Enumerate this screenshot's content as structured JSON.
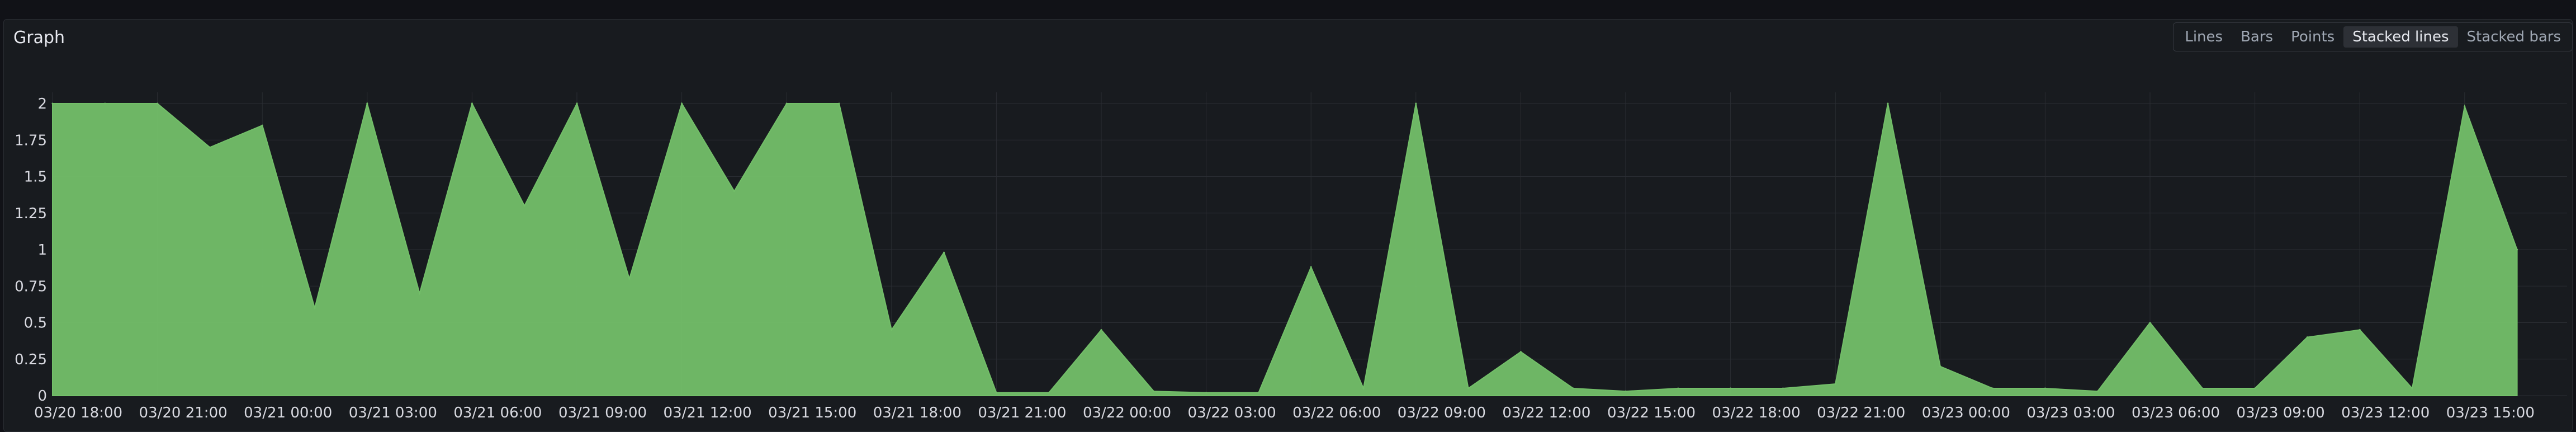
{
  "panel": {
    "title": "Graph"
  },
  "viz_options": [
    {
      "label": "Lines",
      "active": false
    },
    {
      "label": "Bars",
      "active": false
    },
    {
      "label": "Points",
      "active": false
    },
    {
      "label": "Stacked lines",
      "active": true
    },
    {
      "label": "Stacked bars",
      "active": false
    }
  ],
  "colors": {
    "series": "#73bf69",
    "grid": "#2a2d33",
    "background": "#181b1f"
  },
  "chart_data": {
    "type": "area",
    "ylim": [
      0,
      2
    ],
    "y_ticks": [
      "0",
      "0.25",
      "0.5",
      "0.75",
      "1",
      "1.25",
      "1.5",
      "1.75",
      "2"
    ],
    "x_ticks": [
      "03/20 18:00",
      "03/20 21:00",
      "03/21 00:00",
      "03/21 03:00",
      "03/21 06:00",
      "03/21 09:00",
      "03/21 12:00",
      "03/21 15:00",
      "03/21 18:00",
      "03/21 21:00",
      "03/22 00:00",
      "03/22 03:00",
      "03/22 06:00",
      "03/22 09:00",
      "03/22 12:00",
      "03/22 15:00",
      "03/22 18:00",
      "03/22 21:00",
      "03/23 00:00",
      "03/23 03:00",
      "03/23 06:00",
      "03/23 09:00",
      "03/23 12:00",
      "03/23 15:00"
    ],
    "grid": true,
    "legend": "none",
    "series": [
      {
        "x": [
          "03/20 18:00",
          "03/20 19:30",
          "03/20 21:00",
          "03/20 22:30",
          "03/21 00:00",
          "03/21 01:30",
          "03/21 03:00",
          "03/21 04:30",
          "03/21 06:00",
          "03/21 07:30",
          "03/21 09:00",
          "03/21 10:30",
          "03/21 12:00",
          "03/21 13:30",
          "03/21 15:00",
          "03/21 16:30",
          "03/21 18:00",
          "03/21 19:30",
          "03/21 21:00",
          "03/21 22:30",
          "03/22 00:00",
          "03/22 01:30",
          "03/22 03:00",
          "03/22 04:30",
          "03/22 06:00",
          "03/22 07:30",
          "03/22 09:00",
          "03/22 10:30",
          "03/22 12:00",
          "03/22 13:30",
          "03/22 15:00",
          "03/22 16:30",
          "03/22 18:00",
          "03/22 19:30",
          "03/22 21:00",
          "03/22 22:30",
          "03/23 00:00",
          "03/23 01:30",
          "03/23 03:00",
          "03/23 04:30",
          "03/23 06:00",
          "03/23 07:30",
          "03/23 09:00",
          "03/23 10:30",
          "03/23 12:00",
          "03/23 13:30",
          "03/23 15:00",
          "03/23 16:30"
        ],
        "values": [
          2,
          2,
          2,
          1.7,
          1.85,
          0.6,
          2,
          0.7,
          2,
          1.3,
          2,
          0.8,
          2,
          1.4,
          2,
          2,
          0.45,
          0.98,
          0.02,
          0.02,
          0.45,
          0.03,
          0.02,
          0.02,
          0.88,
          0.05,
          2,
          0.05,
          0.3,
          0.05,
          0.03,
          0.05,
          0.05,
          0.05,
          0.08,
          2,
          0.2,
          0.05,
          0.05,
          0.03,
          0.5,
          0.05,
          0.05,
          0.4,
          0.45,
          0.05,
          1.98,
          1
        ]
      }
    ]
  }
}
